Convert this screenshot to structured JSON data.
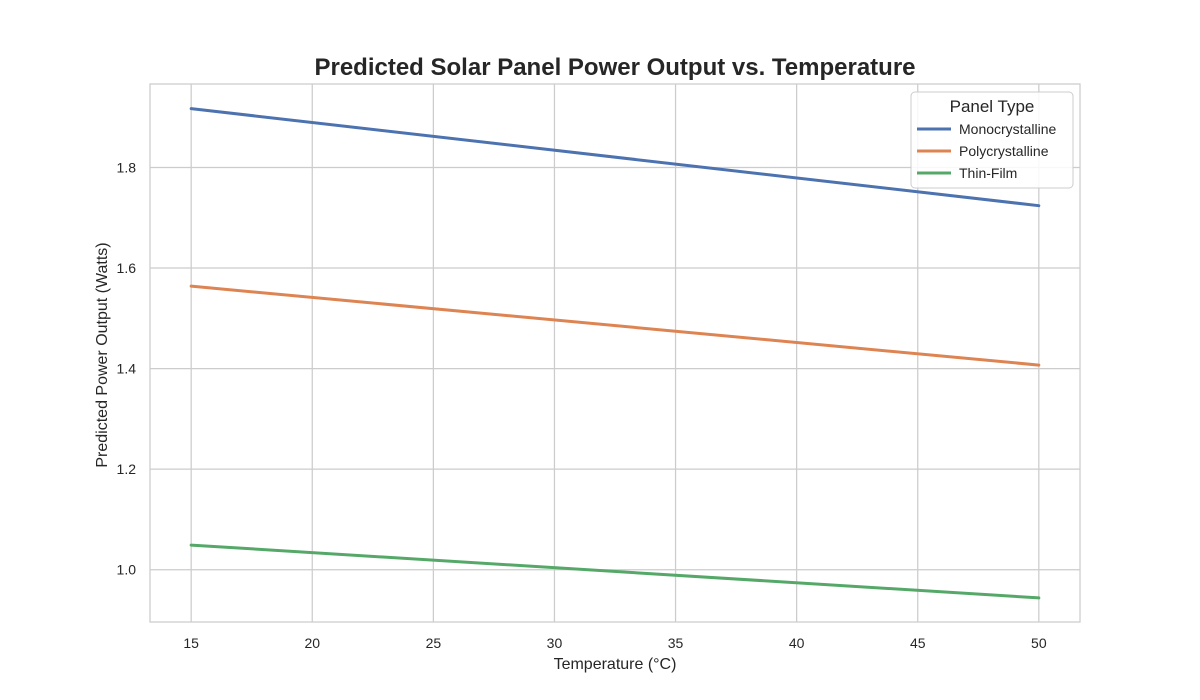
{
  "chart_data": {
    "type": "line",
    "title": "Predicted Solar Panel Power Output vs. Temperature",
    "xlabel": "Temperature (°C)",
    "ylabel": "Predicted Power Output (Watts)",
    "xlim": [
      13.3,
      51.7
    ],
    "ylim": [
      0.896,
      1.966
    ],
    "xticks": [
      15,
      20,
      25,
      30,
      35,
      40,
      45,
      50
    ],
    "yticks": [
      1.0,
      1.2,
      1.4,
      1.6,
      1.8
    ],
    "ytick_labels": [
      "1.0",
      "1.2",
      "1.4",
      "1.6",
      "1.8"
    ],
    "grid": true,
    "legend": {
      "title": "Panel Type",
      "placement": "top-right"
    },
    "x": [
      15,
      50
    ],
    "series": [
      {
        "name": "Monocrystalline",
        "color": "#4c72b0",
        "values": [
          1.917,
          1.724
        ]
      },
      {
        "name": "Polycrystalline",
        "color": "#dd8452",
        "values": [
          1.564,
          1.407
        ]
      },
      {
        "name": "Thin-Film",
        "color": "#55a868",
        "values": [
          1.049,
          0.944
        ]
      }
    ]
  }
}
